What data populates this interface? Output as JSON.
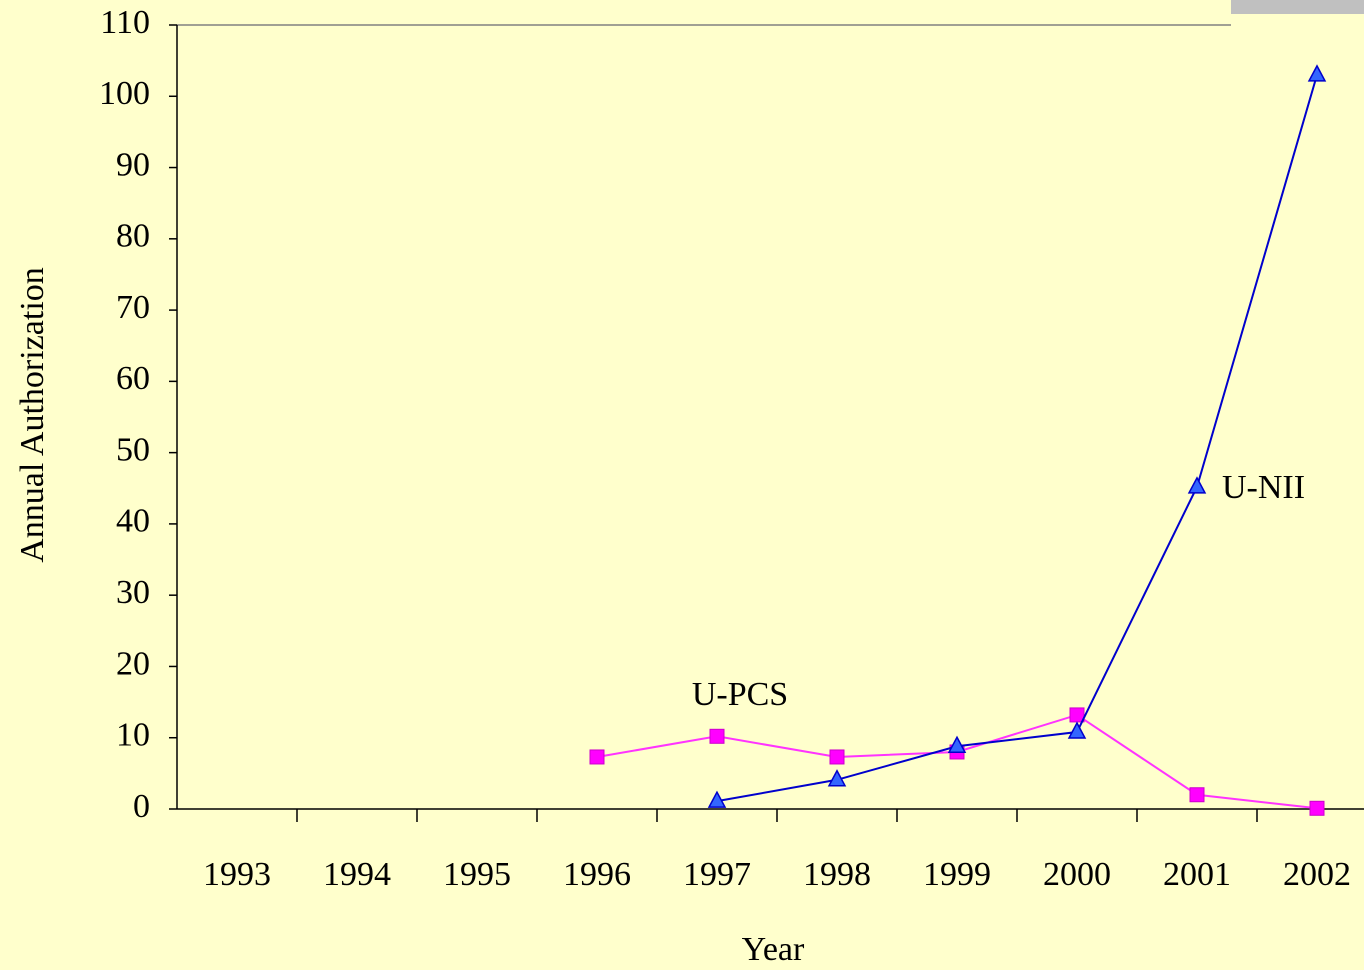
{
  "chart_data": {
    "type": "line",
    "x_label": "Year",
    "y_label": "Annual Authorization",
    "categories": [
      "1993",
      "1994",
      "1995",
      "1996",
      "1997",
      "1998",
      "1999",
      "2000",
      "2001",
      "2002"
    ],
    "series": [
      {
        "name": "U-PCS",
        "color": "#ff00ff",
        "marker": "square",
        "values": [
          null,
          null,
          null,
          7.3,
          10.2,
          7.3,
          8,
          13.2,
          2,
          0.1
        ]
      },
      {
        "name": "U-NII",
        "color": "#0000cc",
        "marker": "triangle",
        "values": [
          null,
          null,
          null,
          null,
          1.1,
          4.1,
          8.8,
          10.8,
          45.2,
          103
        ]
      }
    ],
    "annotations": [
      "U-PCS",
      "U-NII"
    ],
    "ylim": [
      0,
      110
    ],
    "yticks": [
      0,
      10,
      20,
      30,
      40,
      50,
      60,
      70,
      80,
      90,
      100,
      110
    ],
    "grid": false
  }
}
